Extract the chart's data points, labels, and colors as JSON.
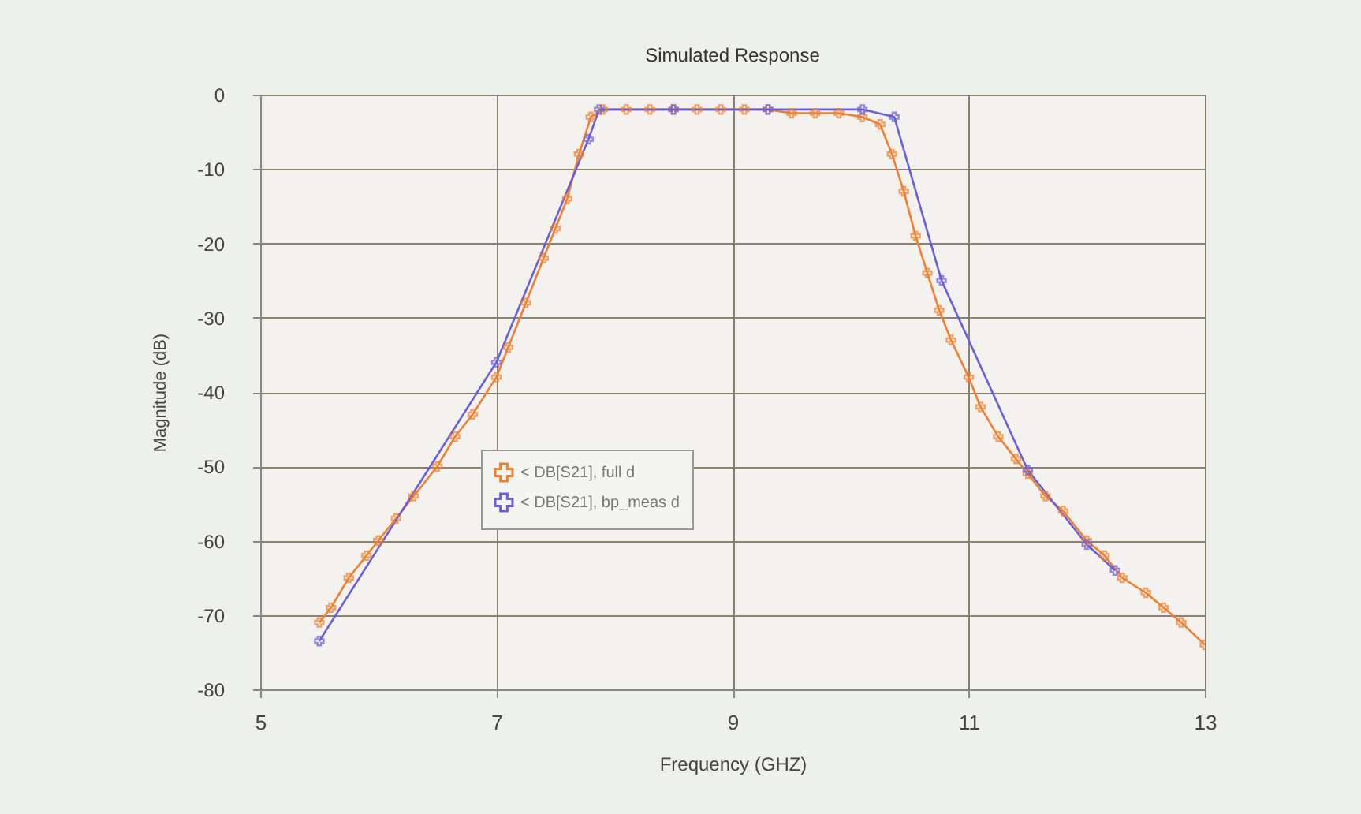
{
  "chart_data": {
    "type": "line",
    "title": "Simulated Response",
    "xlabel": "Frequency (GHZ)",
    "ylabel": "Magnitude (dB)",
    "xlim": [
      5,
      13
    ],
    "xticks": [
      5,
      7,
      9,
      11,
      13
    ],
    "ylim": [
      -80,
      0
    ],
    "yticks": [
      -80,
      -70,
      -60,
      -50,
      -40,
      -30,
      -20,
      -10,
      0
    ],
    "grid": true,
    "legend": "left",
    "marker": "cross",
    "series": [
      {
        "name": "< DB[S21], full d",
        "color": "#f08030",
        "x": [
          5.5,
          5.6,
          5.75,
          5.9,
          6.0,
          6.15,
          6.3,
          6.5,
          6.65,
          6.8,
          7.0,
          7.1,
          7.25,
          7.4,
          7.5,
          7.6,
          7.7,
          7.8,
          7.9,
          8.1,
          8.3,
          8.5,
          8.7,
          8.9,
          9.1,
          9.3,
          9.5,
          9.7,
          9.9,
          10.1,
          10.25,
          10.35,
          10.45,
          10.55,
          10.65,
          10.75,
          10.85,
          11.0,
          11.1,
          11.25,
          11.4,
          11.5,
          11.65,
          11.8,
          12.0,
          12.15,
          12.3,
          12.5,
          12.65,
          12.8,
          13.0
        ],
        "values": [
          -71,
          -69,
          -65,
          -62,
          -60,
          -57,
          -54,
          -50,
          -46,
          -43,
          -38,
          -34,
          -28,
          -22,
          -18,
          -14,
          -8,
          -3,
          -2,
          -2,
          -2,
          -2,
          -2,
          -2,
          -2,
          -2,
          -2.5,
          -2.5,
          -2.5,
          -3,
          -4,
          -8,
          -13,
          -19,
          -24,
          -29,
          -33,
          -38,
          -42,
          -46,
          -49,
          -51,
          -54,
          -56,
          -60,
          -62,
          -65,
          -67,
          -69,
          -71,
          -74
        ]
      },
      {
        "name": "< DB[S21], bp_meas d",
        "color": "#6a5fd8",
        "x": [
          5.5,
          7.0,
          7.78,
          7.87,
          8.5,
          9.3,
          10.1,
          10.37,
          10.77,
          11.5,
          12.0,
          12.24
        ],
        "values": [
          -73.5,
          -36,
          -6,
          -2,
          -2,
          -2,
          -2,
          -3,
          -25,
          -50.5,
          -60.5,
          -64
        ]
      }
    ]
  }
}
